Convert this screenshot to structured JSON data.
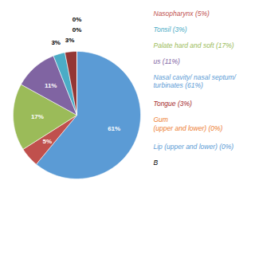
{
  "chart_data": {
    "type": "pie",
    "values": [
      61,
      5,
      17,
      11,
      3,
      3,
      0,
      0
    ],
    "value_labels": [
      "61%",
      "5%",
      "17%",
      "11%",
      "3%",
      "3%",
      "0%",
      "0%"
    ],
    "colors": [
      "#5b9bd5",
      "#c0504d",
      "#9bbb59",
      "#8064a2",
      "#4bacc6",
      "#943634",
      "#f0f0f0",
      "#f0f0f0"
    ],
    "data_labels": true,
    "annotations": [
      {
        "text": "Nasopharynx (5%)",
        "color": "#c0504d"
      },
      {
        "text": "Tonsil (3%)",
        "color": "#4bacc6"
      },
      {
        "text": "Palate hard and soft (17%)",
        "color": "#9bbb59"
      },
      {
        "text": "us (11%)",
        "color": "#8064a2"
      },
      {
        "text": "Nasal cavity/ nasal septum/\nturbinates (61%)",
        "color": "#5b9bd5"
      },
      {
        "text": "Tongue (3%)",
        "color": "#a52a2a"
      },
      {
        "text": "Gum\n(upper and lower) (0%)",
        "color": "#ed7d31"
      },
      {
        "text": "Lip (upper and lower) (0%)",
        "color": "#5b9bd5"
      },
      {
        "text": "B",
        "color": "black"
      }
    ]
  }
}
